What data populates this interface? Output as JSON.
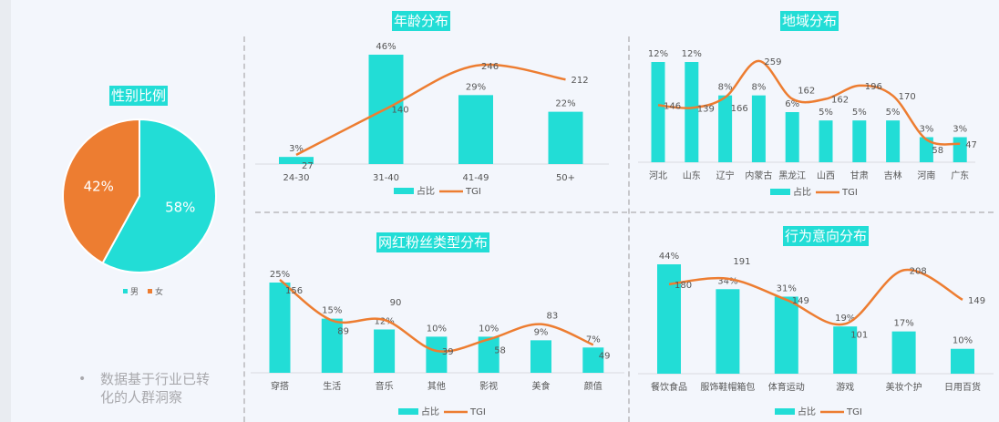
{
  "colors": {
    "bar": "#22ddd6",
    "line": "#ed7d31",
    "title_bg": "#22ddd6",
    "text": "#555555"
  },
  "gender": {
    "title": "性别比例",
    "chart_data": {
      "type": "pie",
      "slices": [
        {
          "name": "男",
          "value": 58,
          "label": "58%"
        },
        {
          "name": "女",
          "value": 42,
          "label": "42%"
        }
      ],
      "legend": "bottom"
    }
  },
  "note": {
    "bullet": "•",
    "text": "数据基于行业已转化的人群洞察"
  },
  "legend": {
    "bar": "占比",
    "line": "TGI"
  },
  "chart_data": [
    {
      "id": "age",
      "title": "年龄分布",
      "type": "bar+line",
      "categories": [
        "24-30",
        "31-40",
        "41-49",
        "50+"
      ],
      "series": [
        {
          "name": "占比",
          "type": "bar",
          "values": [
            3,
            46,
            29,
            22
          ],
          "labels": [
            "3%",
            "46%",
            "29%",
            "22%"
          ]
        },
        {
          "name": "TGI",
          "type": "line",
          "smooth": true,
          "values": [
            27,
            140,
            246,
            212
          ]
        }
      ],
      "legend": "bottom"
    },
    {
      "id": "region",
      "title": "地域分布",
      "type": "bar+line",
      "categories": [
        "河北",
        "山东",
        "辽宁",
        "内蒙古",
        "黑龙江",
        "山西",
        "甘肃",
        "吉林",
        "河南",
        "广东"
      ],
      "series": [
        {
          "name": "占比",
          "type": "bar",
          "values": [
            12,
            12,
            8,
            8,
            6,
            5,
            5,
            5,
            3,
            3
          ],
          "labels": [
            "12%",
            "12%",
            "8%",
            "8%",
            "6%",
            "5%",
            "5%",
            "5%",
            "3%",
            "3%"
          ]
        },
        {
          "name": "TGI",
          "type": "line",
          "smooth": true,
          "values": [
            146,
            139,
            166,
            259,
            162,
            162,
            196,
            170,
            58,
            47
          ]
        }
      ],
      "legend": "bottom"
    },
    {
      "id": "fans",
      "title": "网红粉丝类型分布",
      "type": "bar+line",
      "categories": [
        "穿搭",
        "生活",
        "音乐",
        "其他",
        "影视",
        "美食",
        "颜值"
      ],
      "series": [
        {
          "name": "占比",
          "type": "bar",
          "values": [
            25,
            15,
            12,
            10,
            10,
            9,
            7
          ],
          "labels": [
            "25%",
            "15%",
            "12%",
            "10%",
            "10%",
            "9%",
            "7%"
          ]
        },
        {
          "name": "TGI",
          "type": "line",
          "smooth": true,
          "values": [
            156,
            89,
            90,
            39,
            58,
            83,
            49
          ]
        }
      ],
      "legend": "bottom"
    },
    {
      "id": "behavior",
      "title": "行为意向分布",
      "type": "bar+line",
      "categories": [
        "餐饮食品",
        "服饰鞋帽箱包",
        "体育运动",
        "游戏",
        "美妆个护",
        "日用百货"
      ],
      "series": [
        {
          "name": "占比",
          "type": "bar",
          "values": [
            44,
            34,
            31,
            19,
            17,
            10
          ],
          "labels": [
            "44%",
            "34%",
            "31%",
            "19%",
            "17%",
            "10%"
          ]
        },
        {
          "name": "TGI",
          "type": "line",
          "smooth": true,
          "values": [
            180,
            191,
            149,
            101,
            208,
            149
          ]
        }
      ],
      "legend": "bottom"
    }
  ]
}
